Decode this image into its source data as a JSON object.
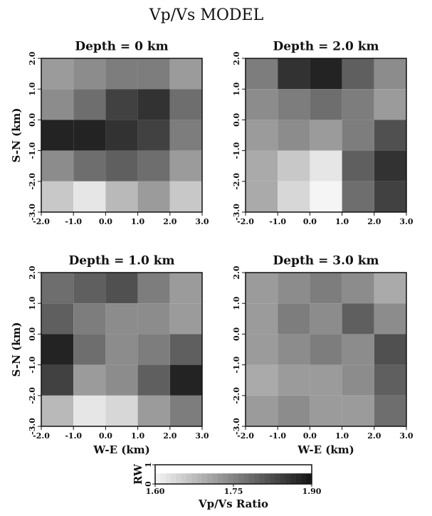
{
  "title": "Vp/Vs MODEL",
  "chart_data": [
    {
      "type": "heatmap",
      "title": "Depth = 0 km",
      "ylabel": "S-N (km)",
      "xbins": [
        -2,
        -1,
        0,
        1,
        2,
        3
      ],
      "ybins": [
        2,
        1,
        0,
        -1,
        -2,
        -3
      ],
      "values": [
        [
          1.72,
          1.74,
          1.76,
          1.76,
          1.72
        ],
        [
          1.74,
          1.78,
          1.84,
          1.86,
          1.78
        ],
        [
          1.88,
          1.88,
          1.86,
          1.84,
          1.76
        ],
        [
          1.74,
          1.78,
          1.8,
          1.78,
          1.72
        ],
        [
          1.66,
          1.62,
          1.68,
          1.72,
          1.66
        ]
      ],
      "xlim": [
        -2,
        3
      ],
      "ylim": [
        -3,
        2
      ],
      "xticks": [
        {
          "value": -2,
          "label": "-2.0"
        },
        {
          "value": -1,
          "label": "-1.0"
        },
        {
          "value": 0,
          "label": "0.0"
        },
        {
          "value": 1,
          "label": "1.0"
        },
        {
          "value": 2,
          "label": "2.0"
        },
        {
          "value": 3,
          "label": "3.0"
        }
      ],
      "yticks": [
        {
          "value": -3,
          "label": "-3.0"
        },
        {
          "value": -2,
          "label": "-2.0"
        },
        {
          "value": -1,
          "label": "-1.0"
        },
        {
          "value": 0,
          "label": "0.0"
        },
        {
          "value": 1,
          "label": "1.0"
        },
        {
          "value": 2,
          "label": "2.0"
        }
      ]
    },
    {
      "type": "heatmap",
      "title": "Depth = 2.0 km",
      "xbins": [
        -2,
        -1,
        0,
        1,
        2,
        3
      ],
      "ybins": [
        2,
        1,
        0,
        -1,
        -2,
        -3
      ],
      "values": [
        [
          1.76,
          1.86,
          1.88,
          1.8,
          1.74
        ],
        [
          1.74,
          1.76,
          1.78,
          1.76,
          1.72
        ],
        [
          1.72,
          1.74,
          1.72,
          1.76,
          1.82
        ],
        [
          1.7,
          1.66,
          1.62,
          1.8,
          1.86
        ],
        [
          1.7,
          1.64,
          1.6,
          1.78,
          1.84
        ]
      ],
      "xlim": [
        -2,
        3
      ],
      "ylim": [
        -3,
        2
      ],
      "xticks": [
        {
          "value": -2,
          "label": "-2.0"
        },
        {
          "value": -1,
          "label": "-1.0"
        },
        {
          "value": 0,
          "label": "0.0"
        },
        {
          "value": 1,
          "label": "1.0"
        },
        {
          "value": 2,
          "label": "2.0"
        },
        {
          "value": 3,
          "label": "3.0"
        }
      ],
      "yticks": [
        {
          "value": -3,
          "label": "-3.0"
        },
        {
          "value": -2,
          "label": "-2.0"
        },
        {
          "value": -1,
          "label": "-1.0"
        },
        {
          "value": 0,
          "label": "0.0"
        },
        {
          "value": 1,
          "label": "1.0"
        },
        {
          "value": 2,
          "label": "2.0"
        }
      ]
    },
    {
      "type": "heatmap",
      "title": "Depth = 1.0 km",
      "ylabel": "S-N (km)",
      "xlabel": "W-E (km)",
      "xbins": [
        -2,
        -1,
        0,
        1,
        2,
        3
      ],
      "ybins": [
        2,
        1,
        0,
        -1,
        -2,
        -3
      ],
      "values": [
        [
          1.78,
          1.8,
          1.82,
          1.76,
          1.72
        ],
        [
          1.8,
          1.76,
          1.74,
          1.74,
          1.72
        ],
        [
          1.88,
          1.78,
          1.74,
          1.76,
          1.8
        ],
        [
          1.84,
          1.72,
          1.74,
          1.8,
          1.88
        ],
        [
          1.68,
          1.62,
          1.64,
          1.72,
          1.76
        ]
      ],
      "xlim": [
        -2,
        3
      ],
      "ylim": [
        -3,
        2
      ],
      "xticks": [
        {
          "value": -2,
          "label": "-2.0"
        },
        {
          "value": -1,
          "label": "-1.0"
        },
        {
          "value": 0,
          "label": "0.0"
        },
        {
          "value": 1,
          "label": "1.0"
        },
        {
          "value": 2,
          "label": "2.0"
        },
        {
          "value": 3,
          "label": "3.0"
        }
      ],
      "yticks": [
        {
          "value": -3,
          "label": "-3.0"
        },
        {
          "value": -2,
          "label": "-2.0"
        },
        {
          "value": -1,
          "label": "-1.0"
        },
        {
          "value": 0,
          "label": "0.0"
        },
        {
          "value": 1,
          "label": "1.0"
        },
        {
          "value": 2,
          "label": "2.0"
        }
      ]
    },
    {
      "type": "heatmap",
      "title": "Depth = 3.0 km",
      "xlabel": "W-E (km)",
      "xbins": [
        -2,
        -1,
        0,
        1,
        2,
        3
      ],
      "ybins": [
        2,
        1,
        0,
        -1,
        -2,
        -3
      ],
      "values": [
        [
          1.72,
          1.74,
          1.76,
          1.74,
          1.7
        ],
        [
          1.72,
          1.76,
          1.74,
          1.8,
          1.74
        ],
        [
          1.72,
          1.74,
          1.76,
          1.74,
          1.82
        ],
        [
          1.7,
          1.72,
          1.72,
          1.74,
          1.8
        ],
        [
          1.72,
          1.74,
          1.72,
          1.72,
          1.78
        ]
      ],
      "xlim": [
        -2,
        3
      ],
      "ylim": [
        -3,
        2
      ],
      "xticks": [
        {
          "value": -2,
          "label": "-2.0"
        },
        {
          "value": -1,
          "label": "-1.0"
        },
        {
          "value": 0,
          "label": "0.0"
        },
        {
          "value": 1,
          "label": "1.0"
        },
        {
          "value": 2,
          "label": "2.0"
        },
        {
          "value": 3,
          "label": "3.0"
        }
      ],
      "yticks": [
        {
          "value": -3,
          "label": "-3.0"
        },
        {
          "value": -2,
          "label": "-2.0"
        },
        {
          "value": -1,
          "label": "-1.0"
        },
        {
          "value": 0,
          "label": "0.0"
        },
        {
          "value": 1,
          "label": "1.0"
        },
        {
          "value": 2,
          "label": "2.0"
        }
      ]
    },
    {
      "type": "colorbar",
      "xlabel": "Vp/Vs Ratio",
      "ylabel": "RW",
      "xlim": [
        1.6,
        1.9
      ],
      "ylim": [
        0,
        1
      ],
      "xticks": [
        {
          "value": 1.6,
          "label": "1.60"
        },
        {
          "value": 1.75,
          "label": "1.75"
        },
        {
          "value": 1.9,
          "label": "1.90"
        }
      ],
      "yticks": [
        0,
        1
      ]
    }
  ]
}
